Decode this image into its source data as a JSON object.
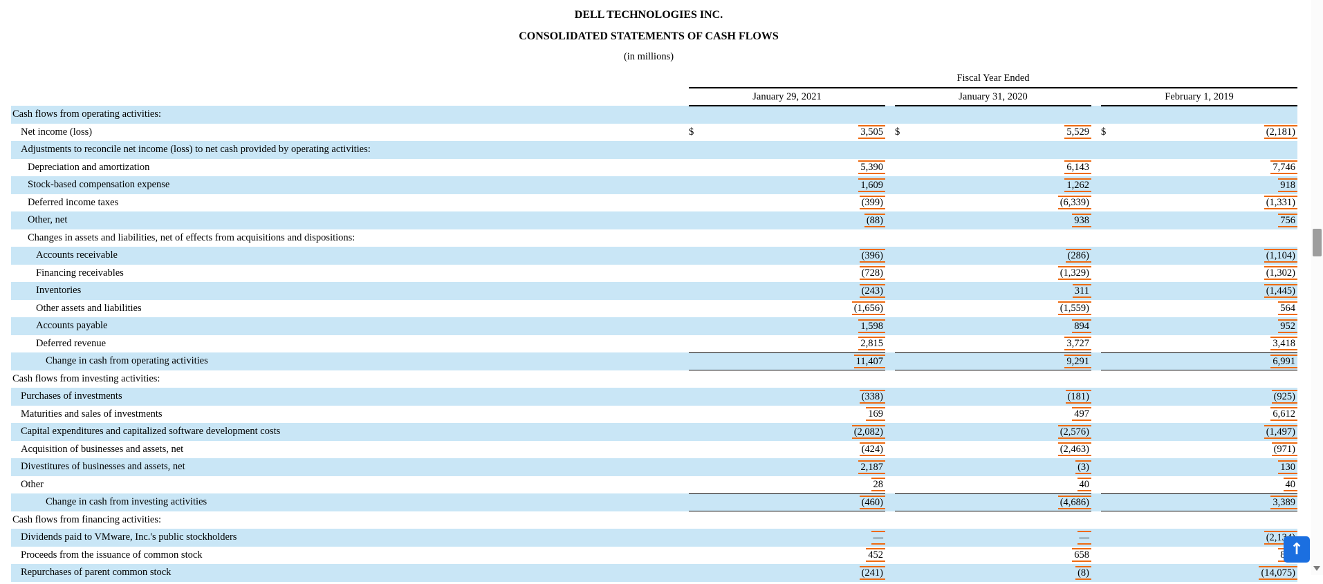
{
  "document": {
    "company": "DELL TECHNOLOGIES INC.",
    "statement": "CONSOLIDATED STATEMENTS OF CASH FLOWS",
    "units": "(in millions)"
  },
  "table": {
    "period_header": "Fiscal Year Ended",
    "columns": [
      "January 29, 2021",
      "January 31, 2020",
      "February 1, 2019"
    ],
    "rows": [
      {
        "label": "Cash flows from operating activities:",
        "indent": 0,
        "shaded": true,
        "values": null
      },
      {
        "label": "Net income (loss)",
        "indent": 1,
        "shaded": false,
        "dollar": true,
        "values": [
          "3,505",
          "5,529",
          "(2,181)"
        ]
      },
      {
        "label": "Adjustments to reconcile net income (loss) to net cash provided by operating activities:",
        "indent": 1,
        "shaded": true,
        "values": null
      },
      {
        "label": "Depreciation and amortization",
        "indent": 2,
        "shaded": false,
        "values": [
          "5,390",
          "6,143",
          "7,746"
        ]
      },
      {
        "label": "Stock-based compensation expense",
        "indent": 2,
        "shaded": true,
        "values": [
          "1,609",
          "1,262",
          "918"
        ]
      },
      {
        "label": "Deferred income taxes",
        "indent": 2,
        "shaded": false,
        "values": [
          "(399)",
          "(6,339)",
          "(1,331)"
        ]
      },
      {
        "label": "Other, net",
        "indent": 2,
        "shaded": true,
        "values": [
          "(88)",
          "938",
          "756"
        ]
      },
      {
        "label": "Changes in assets and liabilities, net of effects from acquisitions and dispositions:",
        "indent": 2,
        "shaded": false,
        "values": null
      },
      {
        "label": "Accounts receivable",
        "indent": 3,
        "shaded": true,
        "values": [
          "(396)",
          "(286)",
          "(1,104)"
        ]
      },
      {
        "label": "Financing receivables",
        "indent": 3,
        "shaded": false,
        "values": [
          "(728)",
          "(1,329)",
          "(1,302)"
        ]
      },
      {
        "label": "Inventories",
        "indent": 3,
        "shaded": true,
        "values": [
          "(243)",
          "311",
          "(1,445)"
        ]
      },
      {
        "label": "Other assets and liabilities",
        "indent": 3,
        "shaded": false,
        "values": [
          "(1,656)",
          "(1,559)",
          "564"
        ]
      },
      {
        "label": "Accounts payable",
        "indent": 3,
        "shaded": true,
        "values": [
          "1,598",
          "894",
          "952"
        ]
      },
      {
        "label": "Deferred revenue",
        "indent": 3,
        "shaded": false,
        "values": [
          "2,815",
          "3,727",
          "3,418"
        ]
      },
      {
        "label": "Change in cash from operating activities",
        "indent": 4,
        "shaded": true,
        "total": true,
        "values": [
          "11,407",
          "9,291",
          "6,991"
        ]
      },
      {
        "label": "Cash flows from investing activities:",
        "indent": 0,
        "shaded": false,
        "values": null
      },
      {
        "label": "Purchases of investments",
        "indent": 1,
        "shaded": true,
        "values": [
          "(338)",
          "(181)",
          "(925)"
        ]
      },
      {
        "label": "Maturities and sales of investments",
        "indent": 1,
        "shaded": false,
        "values": [
          "169",
          "497",
          "6,612"
        ]
      },
      {
        "label": "Capital expenditures and capitalized software development costs",
        "indent": 1,
        "shaded": true,
        "values": [
          "(2,082)",
          "(2,576)",
          "(1,497)"
        ]
      },
      {
        "label": "Acquisition of businesses and assets, net",
        "indent": 1,
        "shaded": false,
        "values": [
          "(424)",
          "(2,463)",
          "(971)"
        ]
      },
      {
        "label": "Divestitures of businesses and assets, net",
        "indent": 1,
        "shaded": true,
        "values": [
          "2,187",
          "(3)",
          "130"
        ]
      },
      {
        "label": "Other",
        "indent": 1,
        "shaded": false,
        "values": [
          "28",
          "40",
          "40"
        ]
      },
      {
        "label": "Change in cash from investing activities",
        "indent": 4,
        "shaded": true,
        "total": true,
        "values": [
          "(460)",
          "(4,686)",
          "3,389"
        ]
      },
      {
        "label": "Cash flows from financing activities:",
        "indent": 0,
        "shaded": false,
        "values": null
      },
      {
        "label": "Dividends paid to VMware, Inc.'s public stockholders",
        "indent": 1,
        "shaded": true,
        "values": [
          "—",
          "—",
          "(2,134)"
        ]
      },
      {
        "label": "Proceeds from the issuance of common stock",
        "indent": 1,
        "shaded": false,
        "values": [
          "452",
          "658",
          "837"
        ]
      },
      {
        "label": "Repurchases of parent common stock",
        "indent": 1,
        "shaded": true,
        "values": [
          "(241)",
          "(8)",
          "(14,075)"
        ]
      }
    ]
  },
  "widgets": {
    "back_to_top_label": "↑"
  },
  "colors": {
    "fact_highlight": "#ee6a10",
    "shaded_row": "#c9e6f6",
    "back_to_top_button": "#1b6fe0"
  }
}
